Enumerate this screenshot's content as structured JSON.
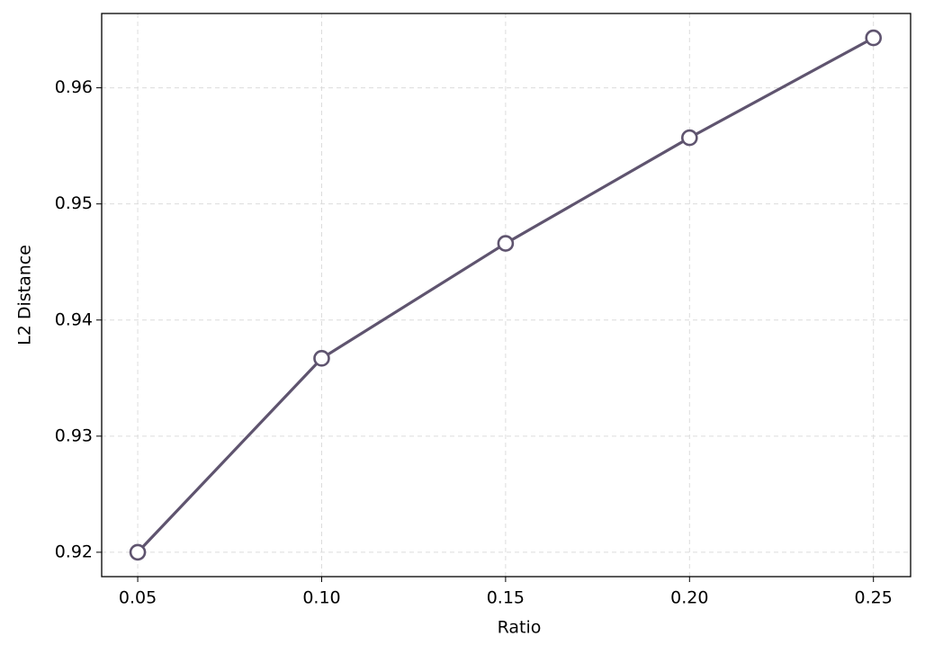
{
  "chart_data": {
    "type": "line",
    "x_label": "Ratio",
    "y_label": "L2 Distance",
    "x": [
      0.05,
      0.1,
      0.15,
      0.2,
      0.25
    ],
    "series": [
      {
        "color": "#5f546f",
        "values": [
          0.92,
          0.9367,
          0.9466,
          0.9557,
          0.9643
        ]
      }
    ],
    "xlim": [
      0.0402,
      0.2601
    ],
    "ylim": [
      0.9179,
      0.9664
    ],
    "xticks": [
      0.05,
      {
        "value": 0.1,
        "label": "0.10"
      },
      0.15,
      {
        "value": 0.2,
        "label": "0.20"
      },
      0.25
    ],
    "yticks": [
      0.92,
      0.93,
      0.94,
      0.95,
      0.96
    ],
    "grid": true,
    "marker": "circle"
  }
}
